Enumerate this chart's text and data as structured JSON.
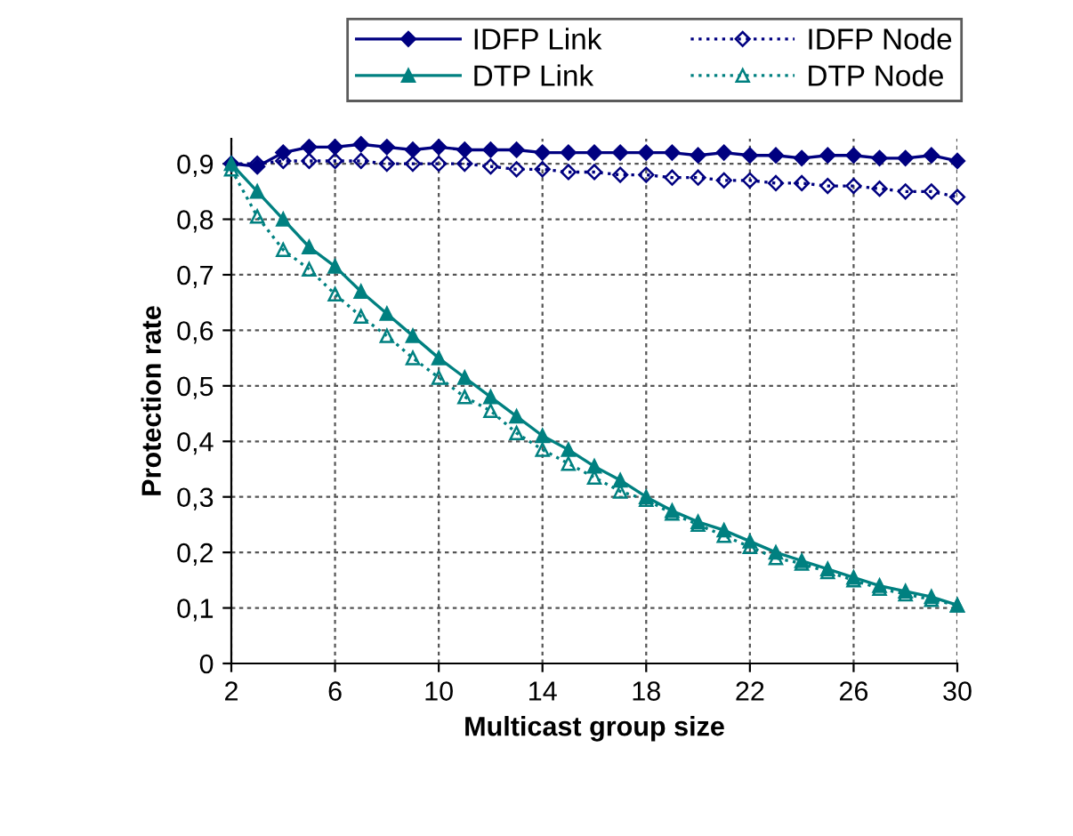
{
  "chart_data": {
    "type": "line",
    "xlabel": "Multicast group size",
    "ylabel": "Protection rate",
    "x": [
      2,
      3,
      4,
      5,
      6,
      7,
      8,
      9,
      10,
      11,
      12,
      13,
      14,
      15,
      16,
      17,
      18,
      19,
      20,
      21,
      22,
      23,
      24,
      25,
      26,
      27,
      28,
      29,
      30
    ],
    "series": [
      {
        "name": "IDFP Link",
        "color": "#000080",
        "marker": "diamond",
        "line_style": "solid",
        "values": [
          0.9,
          0.895,
          0.92,
          0.93,
          0.93,
          0.935,
          0.93,
          0.925,
          0.93,
          0.925,
          0.925,
          0.925,
          0.92,
          0.92,
          0.92,
          0.92,
          0.92,
          0.92,
          0.915,
          0.92,
          0.915,
          0.915,
          0.91,
          0.915,
          0.915,
          0.91,
          0.91,
          0.915,
          0.905
        ]
      },
      {
        "name": "IDFP Node",
        "color": "#000080",
        "marker": "diamond",
        "line_style": "dotted",
        "values": [
          0.9,
          0.9,
          0.905,
          0.905,
          0.905,
          0.905,
          0.9,
          0.9,
          0.9,
          0.9,
          0.895,
          0.89,
          0.89,
          0.885,
          0.885,
          0.88,
          0.88,
          0.875,
          0.875,
          0.87,
          0.87,
          0.865,
          0.865,
          0.86,
          0.86,
          0.855,
          0.85,
          0.85,
          0.84
        ]
      },
      {
        "name": "DTP Link",
        "color": "#008080",
        "marker": "triangle",
        "line_style": "solid",
        "values": [
          0.9,
          0.85,
          0.8,
          0.75,
          0.715,
          0.67,
          0.63,
          0.59,
          0.55,
          0.515,
          0.48,
          0.445,
          0.41,
          0.385,
          0.355,
          0.33,
          0.3,
          0.275,
          0.255,
          0.24,
          0.22,
          0.2,
          0.185,
          0.17,
          0.155,
          0.14,
          0.13,
          0.12,
          0.105
        ]
      },
      {
        "name": "DTP Node",
        "color": "#008080",
        "marker": "triangle",
        "line_style": "dotted",
        "values": [
          0.89,
          0.805,
          0.745,
          0.71,
          0.665,
          0.625,
          0.59,
          0.55,
          0.515,
          0.48,
          0.455,
          0.415,
          0.385,
          0.36,
          0.335,
          0.31,
          0.295,
          0.27,
          0.25,
          0.23,
          0.21,
          0.19,
          0.18,
          0.165,
          0.15,
          0.135,
          0.125,
          0.115,
          0.105
        ]
      }
    ],
    "xlim": [
      2,
      30
    ],
    "xticks": [
      2,
      6,
      10,
      14,
      18,
      22,
      26,
      30
    ],
    "ylim": [
      0,
      0.945
    ],
    "yticks": [
      {
        "value": 0,
        "label": "0"
      },
      {
        "value": 0.1,
        "label": "0,1"
      },
      {
        "value": 0.2,
        "label": "0,2"
      },
      {
        "value": 0.3,
        "label": "0,3"
      },
      {
        "value": 0.4,
        "label": "0,4"
      },
      {
        "value": 0.5,
        "label": "0,5"
      },
      {
        "value": 0.6,
        "label": "0,6"
      },
      {
        "value": 0.7,
        "label": "0,7"
      },
      {
        "value": 0.8,
        "label": "0,8"
      },
      {
        "value": 0.9,
        "label": "0,9"
      }
    ],
    "grid": true,
    "legend": "top"
  }
}
